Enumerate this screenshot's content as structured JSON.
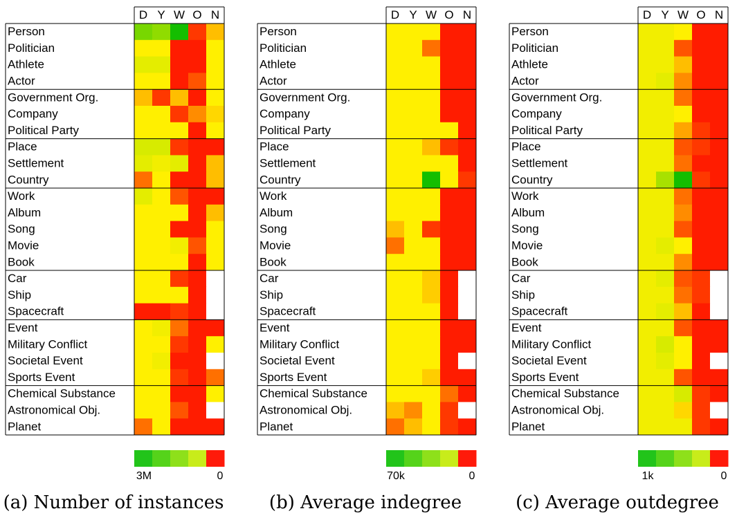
{
  "columns": [
    "D",
    "Y",
    "W",
    "O",
    "N"
  ],
  "groups": [
    [
      "Person",
      "Politician",
      "Athlete",
      "Actor"
    ],
    [
      "Government Org.",
      "Company",
      "Political Party"
    ],
    [
      "Place",
      "Settlement",
      "Country"
    ],
    [
      "Work",
      "Album",
      "Song",
      "Movie",
      "Book"
    ],
    [
      "Car",
      "Ship",
      "Spacecraft"
    ],
    [
      "Event",
      "Military Conflict",
      "Societal Event",
      "Sports Event"
    ],
    [
      "Chemical Substance",
      "Astronomical Obj.",
      "Planet"
    ]
  ],
  "scale_colors": [
    "#22c41a",
    "#55d31a",
    "#8ee01a",
    "#c8ec1a",
    "#ff1a0a"
  ],
  "chart_data": [
    {
      "type": "heatmap",
      "caption": "(a) Number of instances",
      "scale_max_label": "3M",
      "scale_min_label": "0",
      "x": [
        "D",
        "Y",
        "W",
        "O",
        "N"
      ],
      "values": [
        [
          0.8,
          0.75,
          1.0,
          0.1,
          0.35
        ],
        [
          0.45,
          0.45,
          0.05,
          0.05,
          0.45
        ],
        [
          0.55,
          0.55,
          0.05,
          0.05,
          0.45
        ],
        [
          0.45,
          0.45,
          0.05,
          0.15,
          0.45
        ],
        [
          0.35,
          0.1,
          0.35,
          0.05,
          0.45
        ],
        [
          0.45,
          0.45,
          0.1,
          0.25,
          0.4
        ],
        [
          0.45,
          0.45,
          0.45,
          0.05,
          0.45
        ],
        [
          0.6,
          0.6,
          0.1,
          0.05,
          0.05
        ],
        [
          0.55,
          0.5,
          0.55,
          0.05,
          0.35
        ],
        [
          0.2,
          0.45,
          0.05,
          0.05,
          0.35
        ],
        [
          0.55,
          0.45,
          0.15,
          0.05,
          0.05
        ],
        [
          0.45,
          0.45,
          0.45,
          0.05,
          0.35
        ],
        [
          0.45,
          0.45,
          0.05,
          0.05,
          0.45
        ],
        [
          0.45,
          0.45,
          0.5,
          0.15,
          0.45
        ],
        [
          0.45,
          0.45,
          0.45,
          0.05,
          0.45
        ],
        [
          0.45,
          0.45,
          0.1,
          0.05,
          null
        ],
        [
          0.45,
          0.45,
          0.45,
          0.05,
          null
        ],
        [
          0.05,
          0.05,
          0.1,
          0.05,
          null
        ],
        [
          0.45,
          0.5,
          0.2,
          0.05,
          0.05
        ],
        [
          0.45,
          0.45,
          0.1,
          0.05,
          0.45
        ],
        [
          0.45,
          0.5,
          0.05,
          0.05,
          null
        ],
        [
          0.45,
          0.45,
          0.1,
          0.05,
          0.2
        ],
        [
          0.45,
          0.45,
          0.05,
          0.05,
          0.45
        ],
        [
          0.45,
          0.45,
          0.15,
          0.05,
          null
        ],
        [
          0.2,
          0.45,
          0.05,
          0.05,
          0.05
        ]
      ]
    },
    {
      "type": "heatmap",
      "caption": "(b) Average indegree",
      "scale_max_label": "70k",
      "scale_min_label": "0",
      "x": [
        "D",
        "Y",
        "W",
        "O",
        "N"
      ],
      "values": [
        [
          0.45,
          0.45,
          0.45,
          0.05,
          0.05
        ],
        [
          0.45,
          0.45,
          0.2,
          0.05,
          0.05
        ],
        [
          0.45,
          0.45,
          0.45,
          0.05,
          0.05
        ],
        [
          0.45,
          0.45,
          0.45,
          0.05,
          0.05
        ],
        [
          0.45,
          0.45,
          0.45,
          0.05,
          0.05
        ],
        [
          0.45,
          0.45,
          0.45,
          0.05,
          0.05
        ],
        [
          0.45,
          0.45,
          0.45,
          0.45,
          0.05
        ],
        [
          0.45,
          0.45,
          0.35,
          0.1,
          0.05
        ],
        [
          0.45,
          0.45,
          0.45,
          0.45,
          0.05
        ],
        [
          0.45,
          0.45,
          1.0,
          0.45,
          0.1
        ],
        [
          0.45,
          0.45,
          0.45,
          0.05,
          0.05
        ],
        [
          0.45,
          0.45,
          0.45,
          0.05,
          0.05
        ],
        [
          0.35,
          0.45,
          0.1,
          0.05,
          0.05
        ],
        [
          0.2,
          0.45,
          0.45,
          0.05,
          0.05
        ],
        [
          0.45,
          0.45,
          0.45,
          0.05,
          0.05
        ],
        [
          0.45,
          0.45,
          0.38,
          0.05,
          null
        ],
        [
          0.45,
          0.45,
          0.38,
          0.05,
          null
        ],
        [
          0.45,
          0.45,
          0.45,
          0.05,
          null
        ],
        [
          0.45,
          0.45,
          0.45,
          0.05,
          0.05
        ],
        [
          0.45,
          0.45,
          0.45,
          0.05,
          0.05
        ],
        [
          0.45,
          0.45,
          0.45,
          0.05,
          null
        ],
        [
          0.45,
          0.45,
          0.38,
          0.05,
          0.05
        ],
        [
          0.45,
          0.45,
          0.45,
          0.2,
          0.05
        ],
        [
          0.35,
          0.25,
          0.45,
          0.1,
          null
        ],
        [
          0.2,
          0.35,
          0.45,
          0.1,
          0.05
        ]
      ]
    },
    {
      "type": "heatmap",
      "caption": "(c) Average outdegree",
      "scale_max_label": "1k",
      "scale_min_label": "0",
      "x": [
        "D",
        "Y",
        "W",
        "O",
        "N"
      ],
      "values": [
        [
          0.5,
          0.5,
          0.45,
          0.05,
          0.05
        ],
        [
          0.5,
          0.5,
          0.15,
          0.05,
          0.05
        ],
        [
          0.5,
          0.5,
          0.35,
          0.05,
          0.05
        ],
        [
          0.5,
          0.55,
          0.25,
          0.05,
          0.05
        ],
        [
          0.5,
          0.5,
          0.2,
          0.05,
          0.05
        ],
        [
          0.5,
          0.5,
          0.45,
          0.05,
          0.05
        ],
        [
          0.5,
          0.5,
          0.3,
          0.1,
          0.05
        ],
        [
          0.5,
          0.5,
          0.15,
          0.1,
          0.05
        ],
        [
          0.5,
          0.5,
          0.2,
          0.05,
          0.05
        ],
        [
          0.5,
          0.7,
          1.0,
          0.1,
          0.05
        ],
        [
          0.5,
          0.5,
          0.2,
          0.05,
          0.05
        ],
        [
          0.5,
          0.5,
          0.25,
          0.05,
          0.05
        ],
        [
          0.5,
          0.5,
          0.15,
          0.05,
          0.05
        ],
        [
          0.5,
          0.55,
          0.45,
          0.05,
          0.05
        ],
        [
          0.5,
          0.5,
          0.25,
          0.05,
          0.05
        ],
        [
          0.5,
          0.55,
          0.15,
          0.1,
          null
        ],
        [
          0.5,
          0.5,
          0.2,
          0.1,
          null
        ],
        [
          0.5,
          0.55,
          0.35,
          0.05,
          null
        ],
        [
          0.5,
          0.5,
          0.15,
          0.05,
          0.05
        ],
        [
          0.5,
          0.6,
          0.45,
          0.05,
          0.05
        ],
        [
          0.5,
          0.55,
          0.45,
          0.05,
          null
        ],
        [
          0.5,
          0.5,
          0.15,
          0.05,
          0.05
        ],
        [
          0.5,
          0.5,
          0.6,
          0.1,
          0.05
        ],
        [
          0.5,
          0.5,
          0.4,
          0.1,
          null
        ],
        [
          0.5,
          0.5,
          0.5,
          0.1,
          0.05
        ]
      ]
    }
  ]
}
